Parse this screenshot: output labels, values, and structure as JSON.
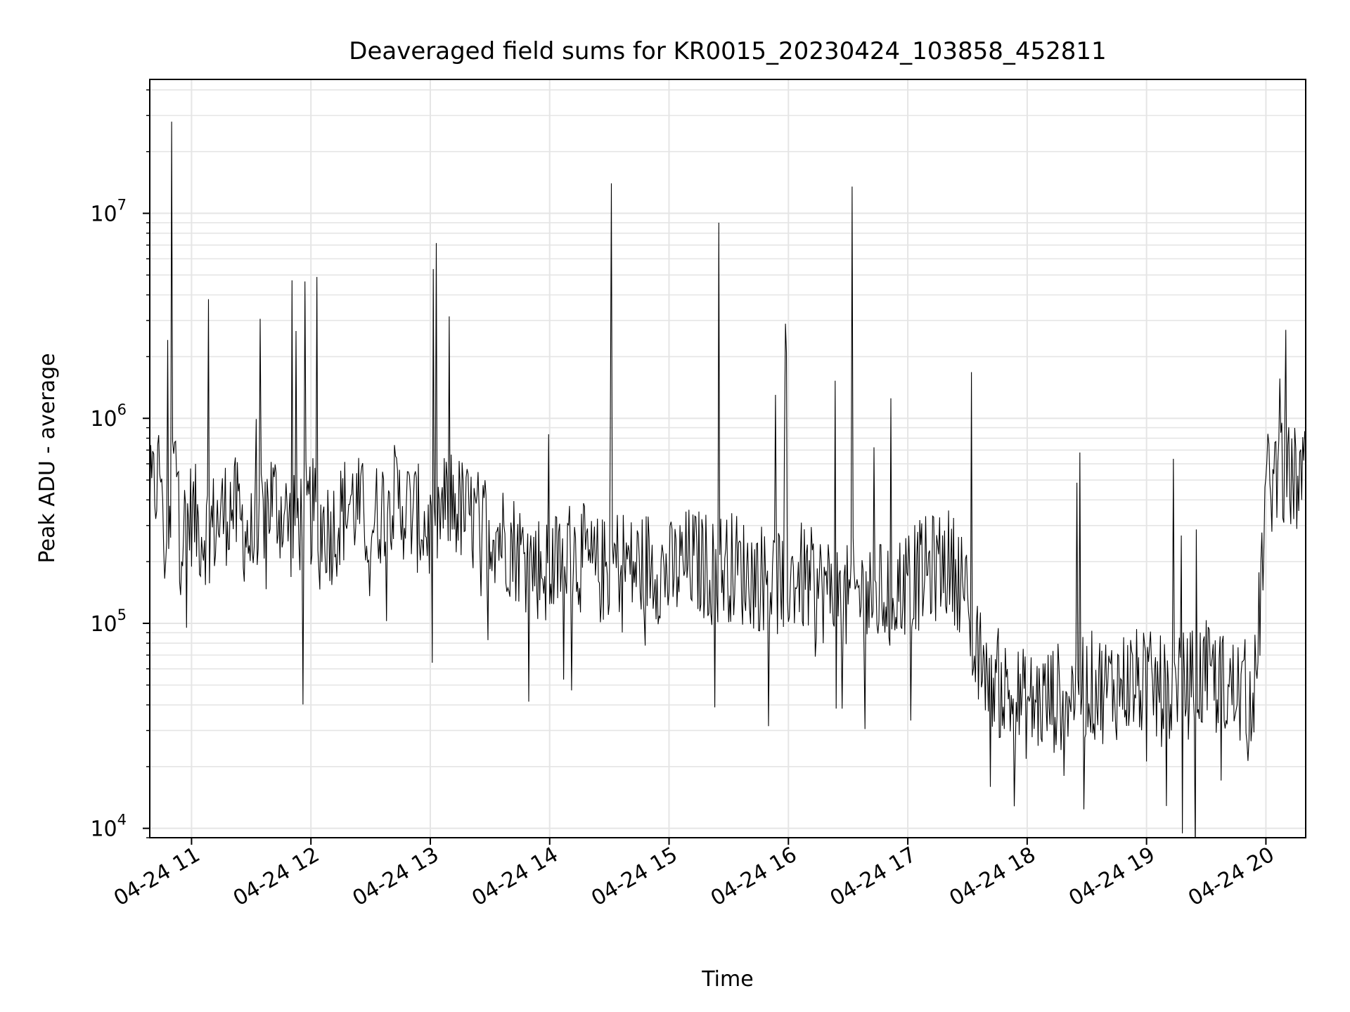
{
  "chart_data": {
    "type": "line",
    "title": "Deaveraged field sums for KR0015_20230424_103858_452811",
    "xlabel": "Time",
    "ylabel": "Peak ADU - average",
    "yscale": "log",
    "ylim": [
      9000,
      45000000
    ],
    "xlim": [
      "2023-04-24 10:39",
      "2023-04-24 20:20"
    ],
    "grid": true,
    "grid_minor": true,
    "line_color": "#000000",
    "grid_color": "#e5e5e5",
    "x_ticks": [
      "04-24 11",
      "04-24 12",
      "04-24 13",
      "04-24 14",
      "04-24 15",
      "04-24 16",
      "04-24 17",
      "04-24 18",
      "04-24 19",
      "04-24 20"
    ],
    "y_ticks": [
      {
        "value": 10000,
        "base": "10",
        "exp": "4"
      },
      {
        "value": 100000,
        "base": "10",
        "exp": "5"
      },
      {
        "value": 1000000,
        "base": "10",
        "exp": "6"
      },
      {
        "value": 10000000,
        "base": "10",
        "exp": "7"
      }
    ],
    "series": [
      {
        "x": [
          "2023-04-24 10:39",
          "2023-04-24 10:45",
          "2023-04-24 10:50",
          "2023-04-24 10:54",
          "2023-04-24 11:00",
          "2023-04-24 11:05",
          "2023-04-24 11:11",
          "2023-04-24 11:20",
          "2023-04-24 11:30",
          "2023-04-24 11:40",
          "2023-04-24 11:50",
          "2023-04-24 12:00",
          "2023-04-24 12:10",
          "2023-04-24 12:20",
          "2023-04-24 12:30",
          "2023-04-24 12:40",
          "2023-04-24 12:50",
          "2023-04-24 13:00",
          "2023-04-24 13:10",
          "2023-04-24 13:20",
          "2023-04-24 13:30",
          "2023-04-24 13:40",
          "2023-04-24 13:50",
          "2023-04-24 14:00",
          "2023-04-24 14:10",
          "2023-04-24 14:20",
          "2023-04-24 14:31",
          "2023-04-24 14:40",
          "2023-04-24 14:50",
          "2023-04-24 15:00",
          "2023-04-24 15:10",
          "2023-04-24 15:20",
          "2023-04-24 15:25",
          "2023-04-24 15:35",
          "2023-04-24 15:45",
          "2023-04-24 15:55",
          "2023-04-24 16:05",
          "2023-04-24 16:15",
          "2023-04-24 16:25",
          "2023-04-24 16:32",
          "2023-04-24 16:40",
          "2023-04-24 16:50",
          "2023-04-24 17:00",
          "2023-04-24 17:10",
          "2023-04-24 17:20",
          "2023-04-24 17:28",
          "2023-04-24 17:33",
          "2023-04-24 17:40",
          "2023-04-24 17:50",
          "2023-04-24 18:00",
          "2023-04-24 18:10",
          "2023-04-24 18:20",
          "2023-04-24 18:30",
          "2023-04-24 18:40",
          "2023-04-24 18:50",
          "2023-04-24 19:00",
          "2023-04-24 19:10",
          "2023-04-24 19:20",
          "2023-04-24 19:30",
          "2023-04-24 19:40",
          "2023-04-24 19:50",
          "2023-04-24 19:55",
          "2023-04-24 20:00",
          "2023-04-24 20:06",
          "2023-04-24 20:12",
          "2023-04-24 20:20"
        ],
        "y": [
          380000,
          600000,
          28000000,
          250000,
          350000,
          280000,
          300000,
          380000,
          250000,
          420000,
          300000,
          350000,
          280000,
          400000,
          300000,
          420000,
          350000,
          280000,
          400000,
          320000,
          300000,
          250000,
          200000,
          180000,
          220000,
          200000,
          14000000,
          180000,
          200000,
          170000,
          200000,
          190000,
          9000000,
          180000,
          170000,
          160000,
          170000,
          150000,
          140000,
          13500000,
          130000,
          140000,
          160000,
          180000,
          200000,
          160000,
          70000,
          60000,
          45000,
          40000,
          42000,
          45000,
          50000,
          48000,
          52000,
          50000,
          45000,
          50000,
          55000,
          48000,
          45000,
          50000,
          450000,
          550000,
          500000,
          480000
        ]
      }
    ]
  }
}
